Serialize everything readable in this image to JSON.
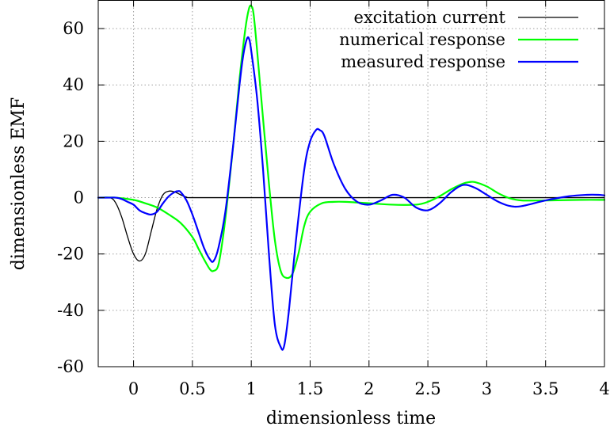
{
  "chart_data": {
    "type": "line",
    "title": "",
    "xlabel": "dimensionless time",
    "ylabel": "dimensionless EMF",
    "xlim": [
      -0.3,
      4.0
    ],
    "ylim": [
      -60,
      70
    ],
    "x_ticks": [
      0,
      0.5,
      1,
      1.5,
      2,
      2.5,
      3,
      3.5,
      4
    ],
    "x_tick_labels": [
      "0",
      "0.5",
      "1",
      "1.5",
      "2",
      "2.5",
      "3",
      "3.5",
      "4"
    ],
    "y_ticks": [
      -60,
      -40,
      -20,
      0,
      20,
      40,
      60
    ],
    "y_tick_labels": [
      "-60",
      "-40",
      "-20",
      "0",
      "20",
      "40",
      "60"
    ],
    "grid": true,
    "legend_position": "top-right",
    "series": [
      {
        "name": "excitation current",
        "color": "#000000",
        "x": [
          -0.3,
          -0.2,
          -0.15,
          -0.1,
          -0.05,
          0.0,
          0.05,
          0.1,
          0.15,
          0.2,
          0.25,
          0.3,
          0.35,
          0.4,
          0.45,
          0.5,
          1.0,
          2.0,
          3.0,
          4.0
        ],
        "y": [
          0,
          0,
          -2,
          -7,
          -14,
          -20,
          -22.5,
          -20,
          -12,
          -4,
          1,
          2.3,
          2,
          1,
          0.2,
          0,
          0,
          0,
          0,
          0
        ]
      },
      {
        "name": "numerical response",
        "color": "#00ff00",
        "x": [
          -0.3,
          -0.15,
          0.0,
          0.1,
          0.2,
          0.3,
          0.4,
          0.5,
          0.55,
          0.6,
          0.65,
          0.68,
          0.72,
          0.76,
          0.8,
          0.85,
          0.9,
          0.95,
          0.98,
          1.0,
          1.02,
          1.05,
          1.1,
          1.15,
          1.2,
          1.25,
          1.3,
          1.35,
          1.4,
          1.45,
          1.5,
          1.6,
          1.7,
          1.8,
          2.0,
          2.2,
          2.4,
          2.5,
          2.6,
          2.7,
          2.8,
          2.85,
          2.9,
          3.0,
          3.1,
          3.2,
          3.3,
          3.5,
          3.8,
          4.0
        ],
        "y": [
          0,
          0,
          -0.8,
          -2,
          -3.5,
          -6,
          -9,
          -14,
          -18,
          -22,
          -25.5,
          -26,
          -24,
          -14,
          0,
          20,
          42,
          60,
          67,
          68,
          65,
          52,
          28,
          5,
          -15,
          -26,
          -28.5,
          -27,
          -20,
          -10,
          -5,
          -2,
          -1.5,
          -1.5,
          -2,
          -2.5,
          -2.5,
          -1.5,
          0.5,
          3,
          5,
          5.5,
          5.5,
          4,
          1.5,
          -0.3,
          -1,
          -1,
          -0.8,
          -0.8
        ]
      },
      {
        "name": "measured response",
        "color": "#0000ff",
        "x": [
          -0.3,
          -0.2,
          -0.15,
          -0.1,
          -0.05,
          0.0,
          0.05,
          0.1,
          0.15,
          0.2,
          0.25,
          0.3,
          0.35,
          0.38,
          0.4,
          0.45,
          0.5,
          0.55,
          0.6,
          0.65,
          0.68,
          0.72,
          0.78,
          0.85,
          0.9,
          0.93,
          0.96,
          0.98,
          1.0,
          1.05,
          1.1,
          1.15,
          1.2,
          1.25,
          1.28,
          1.32,
          1.38,
          1.45,
          1.5,
          1.55,
          1.58,
          1.62,
          1.7,
          1.8,
          1.9,
          2.0,
          2.1,
          2.2,
          2.3,
          2.4,
          2.5,
          2.6,
          2.7,
          2.8,
          2.9,
          3.0,
          3.1,
          3.2,
          3.3,
          3.5,
          3.7,
          3.85,
          3.95,
          4.0
        ],
        "y": [
          0,
          0,
          0,
          -0.5,
          -1.5,
          -2.5,
          -4.5,
          -5.5,
          -6,
          -5,
          -2,
          0.5,
          2,
          2.3,
          2,
          -1,
          -6,
          -12,
          -18,
          -22,
          -22.5,
          -18,
          -5,
          20,
          40,
          50,
          56,
          56.5,
          52,
          35,
          10,
          -20,
          -45,
          -53,
          -52.5,
          -40,
          -15,
          10,
          20,
          24,
          24,
          22,
          12,
          3,
          -1.5,
          -2.5,
          -1,
          1,
          0,
          -3.5,
          -4.5,
          -2,
          2,
          4.5,
          3.5,
          1,
          -1.5,
          -3,
          -3,
          -1,
          0.5,
          1,
          1,
          0.8
        ]
      }
    ]
  }
}
